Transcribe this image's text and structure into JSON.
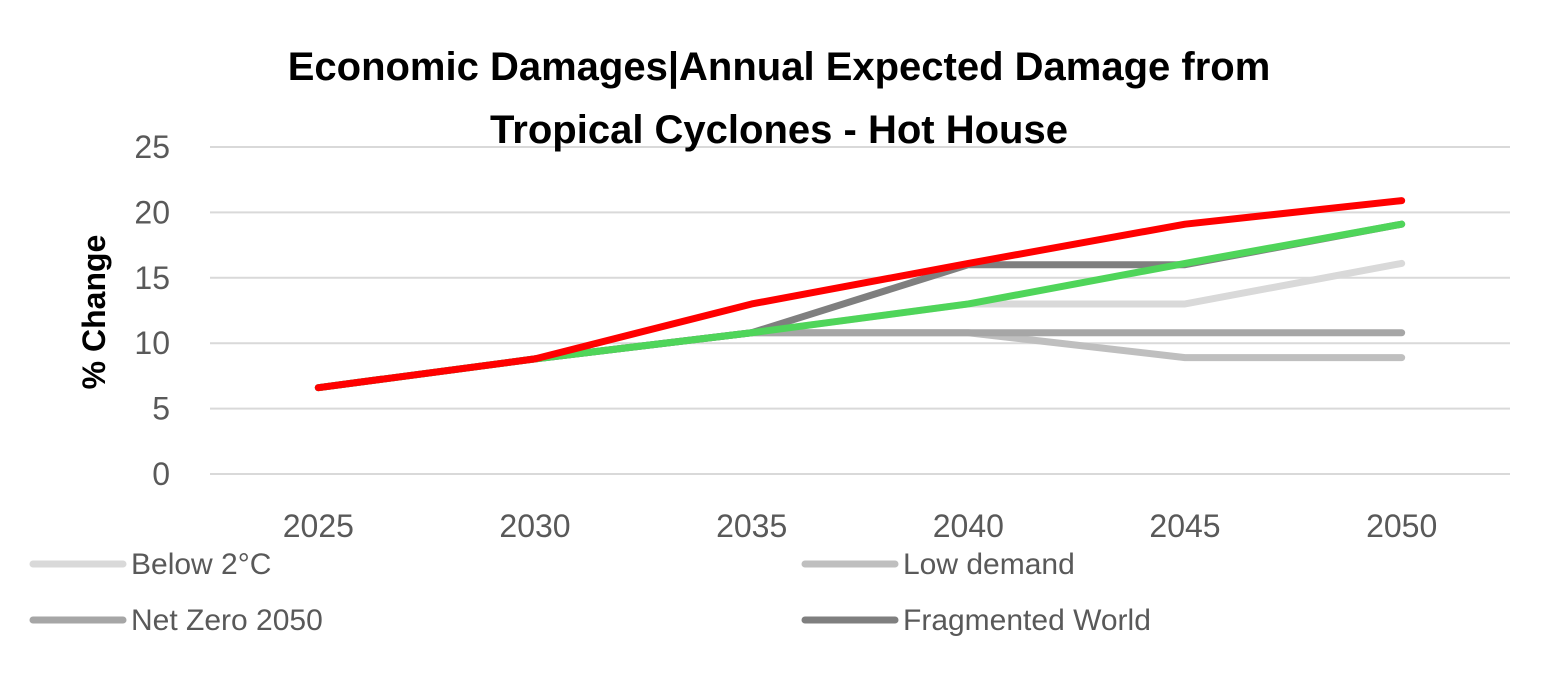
{
  "chart_data": {
    "type": "line",
    "title_lines": [
      "Economic Damages|Annual Expected Damage from",
      "Tropical Cyclones - Hot House"
    ],
    "xlabel": "",
    "ylabel": "% Change",
    "categories": [
      "2025",
      "2030",
      "2035",
      "2040",
      "2045",
      "2050"
    ],
    "ylim": [
      0,
      25
    ],
    "yticks": [
      "0",
      "5",
      "10",
      "15",
      "20",
      "25"
    ],
    "grid": true,
    "legend_position": "bottom",
    "series": [
      {
        "name": "Below 2°C",
        "color": "#d9d9d9",
        "values": [
          6.6,
          8.8,
          10.8,
          13.0,
          13.0,
          16.1
        ],
        "in_legend": true
      },
      {
        "name": "Low demand",
        "color": "#bfbfbf",
        "values": [
          6.6,
          8.8,
          10.8,
          10.8,
          8.9,
          8.9
        ],
        "in_legend": true
      },
      {
        "name": "Net Zero 2050",
        "color": "#a6a6a6",
        "values": [
          6.6,
          8.8,
          10.8,
          10.8,
          10.8,
          10.8
        ],
        "in_legend": true
      },
      {
        "name": "Fragmented World",
        "color": "#7f7f7f",
        "values": [
          6.6,
          8.8,
          10.8,
          16.0,
          16.0,
          19.1
        ],
        "in_legend": true
      },
      {
        "name": "",
        "color": "#4fd55a",
        "values": [
          6.6,
          8.8,
          10.8,
          13.0,
          16.1,
          19.1
        ],
        "in_legend": false
      },
      {
        "name": "",
        "color": "#ff0000",
        "values": [
          6.6,
          8.8,
          13.0,
          16.1,
          19.1,
          20.9
        ],
        "in_legend": false
      }
    ]
  }
}
